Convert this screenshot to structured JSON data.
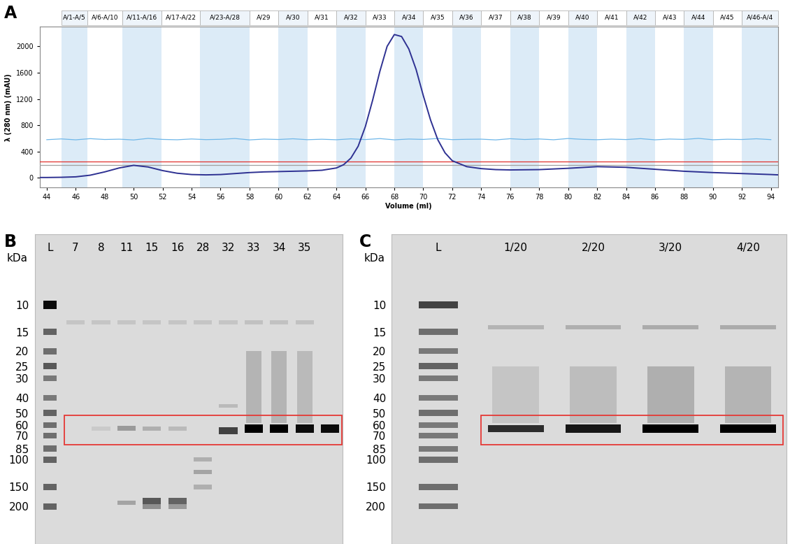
{
  "chart_data": {
    "type": "line",
    "panel_label": "A",
    "xlabel": "Volume (ml)",
    "ylabel": "λ (280 nm) (mAU)",
    "xlim": [
      43.5,
      94.5
    ],
    "ylim": [
      -150,
      2300
    ],
    "xticks": [
      44,
      46,
      48,
      50,
      52,
      54,
      56,
      58,
      60,
      62,
      64,
      66,
      68,
      70,
      72,
      74,
      76,
      78,
      80,
      82,
      84,
      86,
      88,
      90,
      92,
      94
    ],
    "yticks": [
      0,
      400,
      800,
      1200,
      1600,
      2000
    ],
    "grid": false,
    "fractions": [
      {
        "label": "A/1-A/5",
        "start": 45.0,
        "end": 46.8
      },
      {
        "label": "A/6-A/10",
        "start": 46.8,
        "end": 49.2
      },
      {
        "label": "A/11-A/16",
        "start": 49.2,
        "end": 51.9
      },
      {
        "label": "A/17-A/22",
        "start": 51.9,
        "end": 54.6
      },
      {
        "label": "A/23-A/28",
        "start": 54.6,
        "end": 58.0
      },
      {
        "label": "A/29",
        "start": 58,
        "end": 60
      },
      {
        "label": "A/30",
        "start": 60,
        "end": 62
      },
      {
        "label": "A/31",
        "start": 62,
        "end": 64
      },
      {
        "label": "A/32",
        "start": 64,
        "end": 66
      },
      {
        "label": "A/33",
        "start": 66,
        "end": 68
      },
      {
        "label": "A/34",
        "start": 68,
        "end": 70
      },
      {
        "label": "A/35",
        "start": 70,
        "end": 72
      },
      {
        "label": "A/36",
        "start": 72,
        "end": 74
      },
      {
        "label": "A/37",
        "start": 74,
        "end": 76
      },
      {
        "label": "A/38",
        "start": 76,
        "end": 78
      },
      {
        "label": "A/39",
        "start": 78,
        "end": 80
      },
      {
        "label": "A/40",
        "start": 80,
        "end": 82
      },
      {
        "label": "A/41",
        "start": 82,
        "end": 84
      },
      {
        "label": "A/42",
        "start": 84,
        "end": 86
      },
      {
        "label": "A/43",
        "start": 86,
        "end": 88
      },
      {
        "label": "A/44",
        "start": 88,
        "end": 90
      },
      {
        "label": "A/45",
        "start": 90,
        "end": 92
      },
      {
        "label": "A/46-A/4",
        "start": 92,
        "end": 94.5
      }
    ],
    "series": [
      {
        "color": "#2e3192",
        "x": [
          43.5,
          44,
          45,
          46,
          47,
          48,
          49,
          50,
          51,
          52,
          53,
          54,
          55,
          56,
          57,
          58,
          59,
          60,
          61,
          62,
          63,
          64,
          64.5,
          65,
          65.5,
          66,
          66.5,
          67,
          67.5,
          68,
          68.5,
          69,
          69.5,
          70,
          70.5,
          71,
          71.5,
          72,
          73,
          74,
          75,
          76,
          78,
          80,
          82,
          84,
          86,
          88,
          90,
          92,
          94,
          94.5
        ],
        "values": [
          5,
          5,
          8,
          15,
          40,
          90,
          150,
          190,
          165,
          110,
          70,
          50,
          45,
          50,
          65,
          80,
          90,
          95,
          100,
          105,
          115,
          150,
          200,
          300,
          480,
          780,
          1180,
          1620,
          2000,
          2180,
          2150,
          1960,
          1650,
          1250,
          880,
          580,
          380,
          260,
          170,
          140,
          125,
          120,
          125,
          145,
          170,
          160,
          130,
          100,
          80,
          65,
          50,
          45
        ]
      },
      {
        "color": "#6fb7e9",
        "x": [
          44,
          45,
          46,
          47,
          48,
          49,
          50,
          51,
          52,
          53,
          54,
          55,
          56,
          57,
          58,
          59,
          60,
          61,
          62,
          63,
          64,
          65,
          66,
          67,
          68,
          69,
          70,
          71,
          72,
          73,
          74,
          75,
          76,
          77,
          78,
          79,
          80,
          81,
          82,
          83,
          84,
          85,
          86,
          87,
          88,
          89,
          90,
          91,
          92,
          93,
          94
        ],
        "values": [
          580,
          592,
          578,
          596,
          583,
          588,
          576,
          600,
          584,
          579,
          591,
          581,
          586,
          598,
          577,
          589,
          583,
          594,
          580,
          587,
          579,
          593,
          582,
          597,
          578,
          590,
          584,
          599,
          581,
          586,
          588,
          577,
          595,
          583,
          591,
          579,
          598,
          585,
          580,
          589,
          582,
          596,
          578,
          590,
          584,
          600,
          579,
          587,
          583,
          594,
          581
        ]
      },
      {
        "color": "#e0312d",
        "x": [
          43.5,
          94.5
        ],
        "values": [
          250,
          250
        ]
      },
      {
        "color": "#a0a0a0",
        "x": [
          43.5,
          94.5
        ],
        "values": [
          190,
          190
        ]
      }
    ]
  },
  "gels": [
    {
      "panel_label": "B",
      "unit_label": "kDa",
      "ylim": [
        350,
        3.5
      ],
      "ladder": {
        "label": "L",
        "kda": [
          200,
          150,
          100,
          85,
          70,
          60,
          50,
          40,
          30,
          25,
          20,
          15,
          10
        ],
        "intensity": [
          0.55,
          0.55,
          0.55,
          0.5,
          0.5,
          0.5,
          0.55,
          0.45,
          0.45,
          0.6,
          0.5,
          0.55,
          0.95
        ]
      },
      "lanes": [
        {
          "label": "7",
          "bands": [
            [
              13,
              0.1
            ]
          ]
        },
        {
          "label": "8",
          "bands": [
            [
              63,
              0.08
            ],
            [
              13,
              0.1
            ]
          ]
        },
        {
          "label": "11",
          "bands": [
            [
              190,
              0.25
            ],
            [
              63,
              0.3
            ],
            [
              13,
              0.1
            ]
          ]
        },
        {
          "label": "15",
          "bands": [
            [
              200,
              0.35
            ],
            [
              185,
              0.6
            ],
            [
              63,
              0.2
            ],
            [
              13,
              0.1
            ]
          ]
        },
        {
          "label": "16",
          "bands": [
            [
              200,
              0.3
            ],
            [
              185,
              0.55
            ],
            [
              63,
              0.15
            ],
            [
              13,
              0.1
            ]
          ]
        },
        {
          "label": "28",
          "bands": [
            [
              150,
              0.2
            ],
            [
              120,
              0.25
            ],
            [
              100,
              0.2
            ],
            [
              13,
              0.1
            ]
          ]
        },
        {
          "label": "32",
          "bands": [
            [
              65,
              0.7
            ],
            [
              45,
              0.15
            ],
            [
              13,
              0.1
            ]
          ]
        },
        {
          "label": "33",
          "bands": [
            [
              63,
              1.0
            ],
            [
              13,
              0.12
            ]
          ],
          "smear": [
            20,
            58,
            0.18
          ]
        },
        {
          "label": "34",
          "bands": [
            [
              63,
              1.0
            ],
            [
              13,
              0.12
            ]
          ],
          "smear": [
            20,
            58,
            0.18
          ]
        },
        {
          "label": "35",
          "bands": [
            [
              63,
              0.95
            ],
            [
              13,
              0.12
            ]
          ],
          "smear": [
            20,
            58,
            0.15
          ]
        },
        {
          "label": null,
          "bands": [
            [
              63,
              0.95
            ]
          ]
        }
      ],
      "box": {
        "kda": [
          52,
          80
        ],
        "color": "#e53935"
      }
    },
    {
      "panel_label": "C",
      "unit_label": "kDa",
      "ylim": [
        350,
        3.5
      ],
      "ladder": {
        "label": "L",
        "kda": [
          200,
          150,
          100,
          85,
          70,
          60,
          50,
          40,
          30,
          25,
          20,
          15,
          10
        ],
        "intensity": [
          0.5,
          0.5,
          0.5,
          0.45,
          0.45,
          0.45,
          0.5,
          0.45,
          0.45,
          0.55,
          0.45,
          0.5,
          0.7
        ]
      },
      "lanes": [
        {
          "label": "1/20",
          "bands": [
            [
              63,
              0.8
            ],
            [
              14,
              0.18
            ]
          ],
          "smear": [
            25,
            58,
            0.1
          ]
        },
        {
          "label": "2/20",
          "bands": [
            [
              63,
              0.9
            ],
            [
              14,
              0.2
            ]
          ],
          "smear": [
            25,
            58,
            0.14
          ]
        },
        {
          "label": "3/20",
          "bands": [
            [
              63,
              1.0
            ],
            [
              14,
              0.22
            ]
          ],
          "smear": [
            25,
            58,
            0.2
          ]
        },
        {
          "label": "4/20",
          "bands": [
            [
              63,
              1.0
            ],
            [
              14,
              0.22
            ]
          ],
          "smear": [
            25,
            58,
            0.18
          ]
        }
      ],
      "box": {
        "kda": [
          52,
          80
        ],
        "color": "#e53935"
      }
    }
  ]
}
